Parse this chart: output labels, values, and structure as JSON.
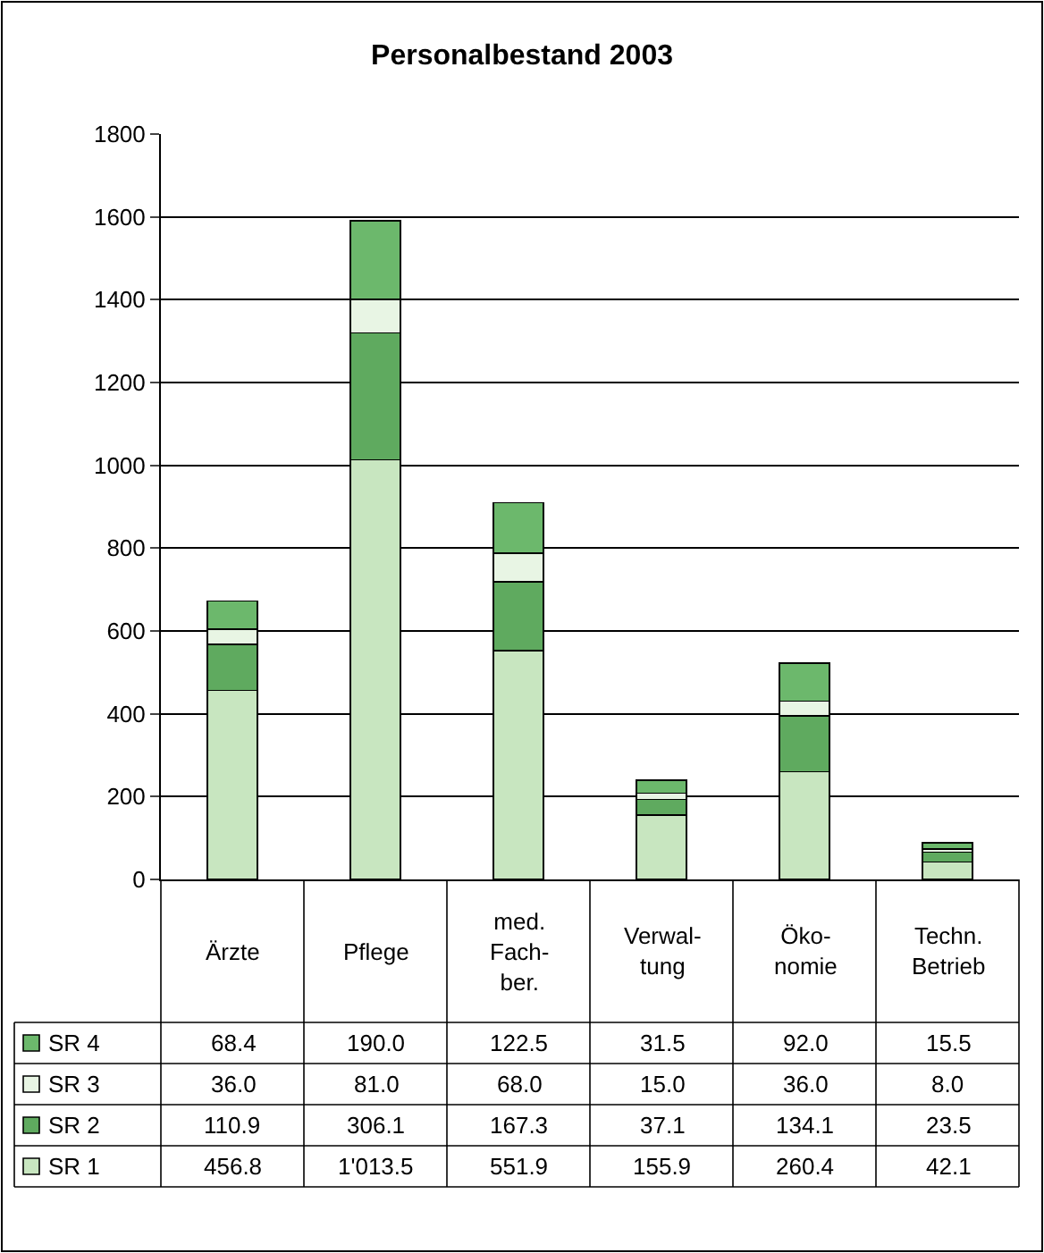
{
  "chart_data": {
    "type": "bar",
    "title": "Personalbestand 2003",
    "stacked": true,
    "categories": [
      "Ärzte",
      "Pflege",
      "med.\nFach-\nber.",
      "Verwal-\ntung",
      "Öko-\nnomie",
      "Techn.\nBetrieb"
    ],
    "series": [
      {
        "name": "SR 1",
        "color": "#c8e6c0",
        "values": [
          456.8,
          1013.5,
          551.9,
          155.9,
          260.4,
          42.1
        ],
        "value_labels": [
          "456.8",
          "1'013.5",
          "551.9",
          "155.9",
          "260.4",
          "42.1"
        ]
      },
      {
        "name": "SR 2",
        "color": "#5faa5f",
        "values": [
          110.9,
          306.1,
          167.3,
          37.1,
          134.1,
          23.5
        ],
        "value_labels": [
          "110.9",
          "306.1",
          "167.3",
          "37.1",
          "134.1",
          "23.5"
        ]
      },
      {
        "name": "SR 3",
        "color": "#e8f5e4",
        "values": [
          36.0,
          81.0,
          68.0,
          15.0,
          36.0,
          8.0
        ],
        "value_labels": [
          "36.0",
          "81.0",
          "68.0",
          "15.0",
          "36.0",
          "8.0"
        ]
      },
      {
        "name": "SR 4",
        "color": "#6cb86c",
        "values": [
          68.4,
          190.0,
          122.5,
          31.5,
          92.0,
          15.5
        ],
        "value_labels": [
          "68.4",
          "190.0",
          "122.5",
          "31.5",
          "92.0",
          "15.5"
        ]
      }
    ],
    "ylim": [
      0,
      1800
    ],
    "yticks": [
      0,
      200,
      400,
      600,
      800,
      1000,
      1200,
      1400,
      1600,
      1800
    ],
    "grid": "y",
    "legend": "bottom left"
  }
}
